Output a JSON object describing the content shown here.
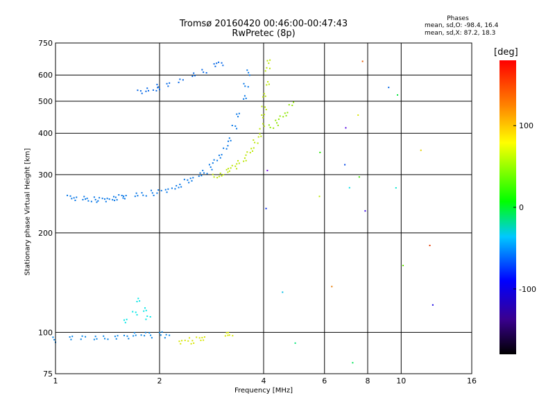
{
  "chart_data": {
    "type": "scatter",
    "title": "Tromsø 20160420 00:46:00-00:47:43",
    "subtitle": "RwPretec (8p)",
    "xlabel": "Frequency [MHz]",
    "ylabel": "Stationary phase Virtual Height [km]",
    "x_scale": "log",
    "y_scale": "log",
    "xlim": [
      1,
      16
    ],
    "ylim": [
      75,
      750
    ],
    "x_ticks": [
      1,
      2,
      4,
      6,
      8,
      10,
      16
    ],
    "y_ticks": [
      75,
      100,
      200,
      300,
      400,
      500,
      600,
      750
    ],
    "grid_x": [
      2,
      4,
      6,
      8,
      10
    ],
    "grid_y": [
      100,
      200,
      300,
      400,
      500,
      600
    ],
    "stats": {
      "heading": "Phases",
      "o_line": "mean, sd,O: -98.4, 16.4",
      "x_line": "mean, sd,X: 87.2, 18.3"
    },
    "colorbar": {
      "label": "[deg]",
      "range": [
        -180,
        180
      ],
      "ticks": [
        100,
        0,
        -100
      ]
    },
    "series": [
      {
        "trace": "F-region lower trace (blue)",
        "phase": -100,
        "points": [
          [
            1.1,
            255
          ],
          [
            1.15,
            254
          ],
          [
            1.2,
            253
          ],
          [
            1.25,
            252
          ],
          [
            1.3,
            252
          ],
          [
            1.35,
            252
          ],
          [
            1.4,
            253
          ],
          [
            1.45,
            254
          ],
          [
            1.5,
            255
          ],
          [
            1.55,
            256
          ],
          [
            1.6,
            257
          ],
          [
            1.7,
            259
          ],
          [
            1.8,
            262
          ],
          [
            1.9,
            264
          ],
          [
            2.0,
            266
          ],
          [
            2.1,
            270
          ],
          [
            2.2,
            274
          ],
          [
            2.3,
            279
          ],
          [
            2.4,
            285
          ],
          [
            2.5,
            291
          ],
          [
            2.6,
            298
          ],
          [
            2.7,
            306
          ],
          [
            2.8,
            316
          ],
          [
            2.9,
            328
          ],
          [
            3.0,
            343
          ],
          [
            3.1,
            362
          ],
          [
            3.2,
            385
          ],
          [
            3.3,
            415
          ],
          [
            3.4,
            455
          ],
          [
            3.5,
            510
          ],
          [
            3.55,
            560
          ],
          [
            3.6,
            610
          ]
        ]
      },
      {
        "trace": "F-region upper branch (blue)",
        "phase": -105,
        "points": [
          [
            1.75,
            535
          ],
          [
            1.85,
            538
          ],
          [
            1.95,
            545
          ],
          [
            2.0,
            552
          ],
          [
            2.1,
            560
          ],
          [
            2.3,
            580
          ],
          [
            2.5,
            600
          ],
          [
            2.7,
            620
          ],
          [
            2.9,
            640
          ],
          [
            3.0,
            650
          ]
        ]
      },
      {
        "trace": "F-region X trace (yellow-green)",
        "phase": 85,
        "points": [
          [
            2.9,
            295
          ],
          [
            3.0,
            300
          ],
          [
            3.1,
            305
          ],
          [
            3.2,
            310
          ],
          [
            3.3,
            318
          ],
          [
            3.4,
            326
          ],
          [
            3.5,
            335
          ],
          [
            3.6,
            345
          ],
          [
            3.7,
            358
          ],
          [
            3.8,
            375
          ],
          [
            3.9,
            395
          ],
          [
            3.95,
            420
          ],
          [
            4.0,
            450
          ],
          [
            4.02,
            480
          ],
          [
            4.05,
            520
          ],
          [
            4.08,
            570
          ],
          [
            4.1,
            620
          ],
          [
            4.12,
            660
          ]
        ]
      },
      {
        "trace": "F-region X upper branch (yellow-green)",
        "phase": 70,
        "points": [
          [
            4.2,
            420
          ],
          [
            4.35,
            430
          ],
          [
            4.5,
            445
          ],
          [
            4.65,
            460
          ],
          [
            4.8,
            490
          ]
        ]
      },
      {
        "trace": "E-region trace (blue)",
        "phase": -95,
        "points": [
          [
            1.0,
            95
          ],
          [
            1.1,
            96
          ],
          [
            1.2,
            97
          ],
          [
            1.3,
            96
          ],
          [
            1.4,
            97
          ],
          [
            1.5,
            96
          ],
          [
            1.6,
            97
          ],
          [
            1.7,
            98
          ],
          [
            1.8,
            99
          ],
          [
            1.9,
            98
          ],
          [
            2.0,
            99
          ],
          [
            2.1,
            98
          ]
        ]
      },
      {
        "trace": "E-region spread (cyan)",
        "phase": -60,
        "points": [
          [
            1.6,
            108
          ],
          [
            1.7,
            115
          ],
          [
            1.75,
            125
          ],
          [
            1.8,
            118
          ],
          [
            1.85,
            110
          ]
        ]
      },
      {
        "trace": "E-region X trace (yellow)",
        "phase": 95,
        "points": [
          [
            2.3,
            94
          ],
          [
            2.4,
            95
          ],
          [
            2.5,
            94
          ],
          [
            2.6,
            95
          ],
          [
            2.7,
            96
          ],
          [
            3.1,
            98
          ],
          [
            3.2,
            99
          ]
        ]
      },
      {
        "trace": "Sparse echoes",
        "phase": 0,
        "points": [
          [
            4.05,
            310
          ],
          [
            4.1,
            240
          ],
          [
            4.5,
            130
          ],
          [
            5.0,
            92
          ],
          [
            5.8,
            350
          ],
          [
            5.9,
            260
          ],
          [
            6.3,
            140
          ],
          [
            6.8,
            410
          ],
          [
            6.9,
            320
          ],
          [
            7.0,
            275
          ],
          [
            7.3,
            82
          ],
          [
            7.5,
            290
          ],
          [
            7.6,
            450
          ],
          [
            7.7,
            660
          ],
          [
            8.0,
            235
          ],
          [
            9.2,
            560
          ],
          [
            9.5,
            270
          ],
          [
            9.8,
            520
          ],
          [
            10.0,
            160
          ],
          [
            11.5,
            360
          ],
          [
            12.0,
            180
          ],
          [
            12.5,
            120
          ]
        ]
      }
    ]
  }
}
